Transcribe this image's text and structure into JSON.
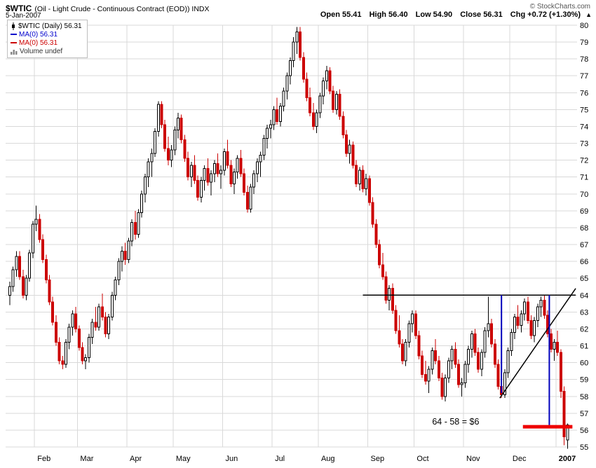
{
  "header": {
    "symbol": "$WTIC",
    "description": "(Oil - Light Crude - Continuous Contract (EOD)) INDX",
    "copyright": "© StockCharts.com",
    "date": "5-Jan-2007",
    "quote": {
      "open_label": "Open",
      "open": "55.41",
      "high_label": "High",
      "high": "56.40",
      "low_label": "Low",
      "low": "54.90",
      "close_label": "Close",
      "close": "56.31",
      "chg_label": "Chg",
      "chg": "+0.72 (+1.30%)",
      "arrow": "▲"
    }
  },
  "legend": {
    "series": "$WTIC (Daily) 56.31",
    "ma1": "MA(0) 56.31",
    "ma2": "MA(0) 56.31",
    "volume": "Volume undef"
  },
  "chart_data": {
    "type": "candlestick",
    "title": "$WTIC (Oil - Light Crude - Continuous Contract (EOD)) INDX",
    "timeframe": "Daily",
    "grid": true,
    "y_axis_side": "right",
    "legend_position": "top-left",
    "ylim": [
      55,
      80
    ],
    "y_ticks": [
      55,
      56,
      57,
      58,
      59,
      60,
      61,
      62,
      63,
      64,
      65,
      66,
      67,
      68,
      69,
      70,
      71,
      72,
      73,
      74,
      75,
      76,
      77,
      78,
      79,
      80
    ],
    "x_labels": [
      "Feb",
      "Mar",
      "Apr",
      "May",
      "Jun",
      "Jul",
      "Aug",
      "Sep",
      "Oct",
      "Nov",
      "Dec",
      "2007"
    ],
    "month_start_indices": [
      8,
      21,
      36,
      50,
      65,
      80,
      94,
      109,
      123,
      138,
      152,
      166
    ],
    "colors": {
      "up": "#000000",
      "down": "#cc0000",
      "grid": "#d9d9d9",
      "annotation_black": "#000000",
      "annotation_blue": "#0000bb",
      "annotation_red": "#ee0000"
    },
    "candle_format": [
      "open",
      "high",
      "low",
      "close"
    ],
    "candles": [
      [
        64.0,
        64.8,
        63.4,
        64.5
      ],
      [
        64.5,
        65.7,
        64.2,
        65.5
      ],
      [
        65.5,
        66.6,
        65.1,
        66.3
      ],
      [
        66.3,
        66.6,
        64.9,
        65.1
      ],
      [
        65.1,
        65.5,
        63.8,
        64.0
      ],
      [
        64.0,
        65.2,
        63.7,
        65.0
      ],
      [
        65.0,
        66.7,
        64.8,
        66.5
      ],
      [
        66.5,
        68.4,
        66.2,
        68.2
      ],
      [
        68.2,
        69.3,
        67.8,
        68.5
      ],
      [
        68.5,
        68.8,
        67.1,
        67.3
      ],
      [
        67.3,
        67.6,
        65.9,
        66.1
      ],
      [
        66.1,
        66.4,
        64.7,
        64.9
      ],
      [
        64.9,
        65.2,
        63.4,
        63.6
      ],
      [
        63.6,
        63.9,
        62.2,
        62.4
      ],
      [
        62.4,
        62.8,
        61.0,
        61.2
      ],
      [
        61.2,
        61.5,
        59.9,
        60.1
      ],
      [
        60.1,
        60.4,
        59.6,
        59.9
      ],
      [
        59.9,
        61.4,
        59.7,
        61.2
      ],
      [
        61.2,
        62.3,
        60.8,
        62.1
      ],
      [
        62.1,
        63.1,
        61.6,
        62.9
      ],
      [
        62.9,
        63.3,
        61.8,
        62.0
      ],
      [
        62.0,
        62.2,
        60.7,
        60.9
      ],
      [
        60.9,
        61.2,
        59.9,
        60.1
      ],
      [
        60.1,
        60.5,
        59.6,
        60.3
      ],
      [
        60.3,
        61.7,
        60.0,
        61.5
      ],
      [
        61.5,
        62.6,
        61.1,
        62.4
      ],
      [
        62.4,
        63.3,
        61.9,
        62.1
      ],
      [
        62.1,
        63.5,
        61.9,
        63.3
      ],
      [
        63.3,
        64.1,
        62.5,
        62.7
      ],
      [
        62.7,
        63.0,
        61.5,
        61.7
      ],
      [
        61.7,
        62.9,
        61.4,
        62.7
      ],
      [
        62.7,
        64.2,
        62.5,
        64.0
      ],
      [
        64.0,
        65.1,
        63.7,
        64.9
      ],
      [
        64.9,
        66.2,
        64.6,
        66.0
      ],
      [
        66.0,
        66.9,
        65.4,
        66.6
      ],
      [
        66.6,
        67.1,
        65.8,
        66.1
      ],
      [
        66.1,
        67.4,
        65.9,
        67.2
      ],
      [
        67.2,
        68.5,
        66.9,
        68.3
      ],
      [
        68.3,
        69.0,
        67.3,
        67.6
      ],
      [
        67.6,
        69.1,
        67.4,
        68.9
      ],
      [
        68.9,
        70.2,
        68.6,
        70.0
      ],
      [
        70.0,
        71.2,
        69.5,
        71.0
      ],
      [
        71.0,
        72.1,
        70.4,
        71.9
      ],
      [
        71.9,
        72.7,
        71.0,
        72.4
      ],
      [
        72.4,
        73.9,
        72.2,
        73.7
      ],
      [
        73.7,
        75.5,
        73.4,
        75.3
      ],
      [
        75.3,
        75.5,
        73.9,
        74.1
      ],
      [
        74.1,
        74.4,
        72.5,
        72.7
      ],
      [
        72.7,
        73.4,
        71.7,
        72.0
      ],
      [
        72.0,
        72.9,
        71.6,
        72.6
      ],
      [
        72.6,
        74.0,
        72.3,
        73.8
      ],
      [
        73.8,
        74.8,
        73.3,
        74.5
      ],
      [
        74.5,
        74.7,
        73.0,
        73.2
      ],
      [
        73.2,
        73.5,
        71.9,
        72.1
      ],
      [
        72.1,
        72.5,
        70.8,
        71.0
      ],
      [
        71.0,
        71.9,
        70.4,
        71.7
      ],
      [
        71.7,
        72.3,
        70.6,
        70.8
      ],
      [
        70.8,
        71.1,
        69.6,
        69.8
      ],
      [
        69.8,
        71.0,
        69.5,
        70.8
      ],
      [
        70.8,
        71.7,
        70.2,
        71.5
      ],
      [
        71.5,
        72.1,
        70.5,
        70.7
      ],
      [
        70.7,
        71.4,
        69.9,
        71.2
      ],
      [
        71.2,
        72.0,
        70.7,
        71.8
      ],
      [
        71.8,
        72.4,
        71.0,
        71.2
      ],
      [
        71.2,
        71.7,
        70.3,
        71.4
      ],
      [
        71.4,
        72.7,
        71.1,
        72.5
      ],
      [
        72.5,
        73.2,
        71.5,
        71.7
      ],
      [
        71.7,
        72.0,
        70.4,
        70.6
      ],
      [
        70.6,
        71.5,
        70.0,
        71.3
      ],
      [
        71.3,
        72.3,
        70.9,
        72.1
      ],
      [
        72.1,
        72.6,
        71.0,
        71.2
      ],
      [
        71.2,
        71.5,
        69.9,
        70.1
      ],
      [
        70.1,
        70.5,
        68.9,
        69.1
      ],
      [
        69.1,
        70.6,
        68.9,
        70.4
      ],
      [
        70.4,
        71.4,
        70.0,
        71.2
      ],
      [
        71.2,
        72.1,
        70.7,
        71.9
      ],
      [
        71.9,
        72.5,
        71.0,
        72.3
      ],
      [
        72.3,
        73.5,
        72.0,
        73.3
      ],
      [
        73.3,
        74.1,
        72.7,
        73.9
      ],
      [
        73.9,
        74.4,
        73.3,
        74.1
      ],
      [
        74.1,
        75.2,
        73.8,
        75.0
      ],
      [
        75.0,
        75.7,
        74.1,
        74.3
      ],
      [
        74.3,
        75.4,
        74.0,
        75.2
      ],
      [
        75.2,
        76.3,
        74.9,
        76.1
      ],
      [
        76.1,
        77.2,
        75.6,
        77.0
      ],
      [
        77.0,
        78.1,
        76.5,
        77.9
      ],
      [
        77.9,
        79.3,
        77.5,
        79.0
      ],
      [
        79.0,
        79.9,
        78.3,
        79.6
      ],
      [
        79.6,
        79.9,
        77.9,
        78.1
      ],
      [
        78.1,
        78.4,
        76.6,
        76.8
      ],
      [
        76.8,
        77.2,
        75.5,
        75.7
      ],
      [
        75.7,
        76.3,
        74.6,
        74.8
      ],
      [
        74.8,
        75.4,
        73.8,
        74.0
      ],
      [
        74.0,
        75.0,
        73.6,
        74.8
      ],
      [
        74.8,
        76.0,
        74.5,
        75.8
      ],
      [
        75.8,
        76.9,
        75.3,
        76.7
      ],
      [
        76.7,
        77.6,
        76.2,
        77.3
      ],
      [
        77.3,
        77.5,
        75.9,
        76.1
      ],
      [
        76.1,
        76.4,
        74.8,
        75.0
      ],
      [
        75.0,
        76.1,
        74.7,
        75.9
      ],
      [
        75.9,
        76.2,
        74.4,
        74.6
      ],
      [
        74.6,
        74.9,
        73.3,
        73.5
      ],
      [
        73.5,
        73.8,
        72.2,
        72.4
      ],
      [
        72.4,
        73.2,
        71.8,
        72.9
      ],
      [
        72.9,
        73.1,
        71.5,
        71.7
      ],
      [
        71.7,
        72.0,
        70.4,
        70.6
      ],
      [
        70.6,
        71.6,
        70.2,
        71.4
      ],
      [
        71.4,
        71.7,
        70.1,
        70.3
      ],
      [
        70.3,
        71.2,
        69.9,
        70.9
      ],
      [
        70.9,
        71.1,
        69.3,
        69.5
      ],
      [
        69.5,
        69.8,
        68.0,
        68.2
      ],
      [
        68.2,
        68.5,
        66.8,
        67.0
      ],
      [
        67.0,
        67.3,
        65.6,
        65.8
      ],
      [
        65.8,
        66.5,
        64.9,
        65.1
      ],
      [
        65.1,
        65.4,
        63.5,
        63.7
      ],
      [
        63.7,
        64.6,
        63.1,
        64.4
      ],
      [
        64.4,
        64.7,
        62.9,
        63.1
      ],
      [
        63.1,
        63.4,
        61.7,
        61.9
      ],
      [
        61.9,
        62.8,
        60.9,
        61.1
      ],
      [
        61.1,
        61.4,
        59.9,
        60.1
      ],
      [
        60.1,
        61.4,
        59.8,
        61.2
      ],
      [
        61.2,
        62.5,
        60.9,
        62.3
      ],
      [
        62.3,
        63.1,
        61.8,
        62.9
      ],
      [
        62.9,
        63.1,
        61.4,
        61.6
      ],
      [
        61.6,
        61.9,
        60.2,
        60.4
      ],
      [
        60.4,
        60.7,
        59.1,
        59.3
      ],
      [
        59.3,
        60.1,
        58.7,
        58.9
      ],
      [
        58.9,
        59.8,
        58.2,
        59.6
      ],
      [
        59.6,
        60.9,
        59.3,
        60.7
      ],
      [
        60.7,
        61.4,
        59.9,
        60.1
      ],
      [
        60.1,
        60.4,
        58.9,
        59.1
      ],
      [
        59.1,
        59.4,
        57.8,
        58.0
      ],
      [
        58.0,
        59.3,
        57.7,
        59.1
      ],
      [
        59.1,
        60.3,
        58.8,
        60.1
      ],
      [
        60.1,
        61.0,
        59.6,
        60.8
      ],
      [
        60.8,
        61.2,
        59.7,
        59.9
      ],
      [
        59.9,
        60.2,
        58.5,
        58.7
      ],
      [
        58.7,
        59.1,
        58.0,
        58.8
      ],
      [
        58.8,
        60.1,
        58.5,
        59.9
      ],
      [
        59.9,
        61.0,
        59.4,
        60.8
      ],
      [
        60.8,
        61.9,
        60.3,
        61.7
      ],
      [
        61.7,
        62.0,
        60.4,
        60.6
      ],
      [
        60.6,
        60.9,
        59.4,
        59.6
      ],
      [
        59.6,
        60.8,
        59.2,
        60.6
      ],
      [
        60.6,
        62.1,
        60.3,
        61.9
      ],
      [
        61.9,
        63.9,
        61.5,
        62.3
      ],
      [
        62.3,
        62.6,
        60.9,
        61.1
      ],
      [
        61.1,
        61.4,
        59.7,
        59.9
      ],
      [
        59.9,
        60.2,
        58.4,
        58.6
      ],
      [
        58.6,
        58.9,
        57.9,
        58.1
      ],
      [
        58.1,
        59.6,
        57.9,
        59.4
      ],
      [
        59.4,
        60.9,
        59.1,
        60.7
      ],
      [
        60.7,
        62.0,
        60.4,
        61.8
      ],
      [
        61.8,
        62.9,
        61.4,
        62.7
      ],
      [
        62.7,
        63.4,
        62.0,
        62.2
      ],
      [
        62.2,
        63.1,
        61.8,
        62.9
      ],
      [
        62.9,
        63.8,
        62.5,
        63.6
      ],
      [
        63.6,
        63.9,
        62.3,
        62.5
      ],
      [
        62.5,
        62.8,
        61.4,
        61.6
      ],
      [
        61.6,
        62.7,
        61.2,
        62.5
      ],
      [
        62.5,
        63.5,
        62.1,
        63.3
      ],
      [
        63.3,
        63.9,
        62.7,
        63.7
      ],
      [
        63.7,
        64.0,
        62.6,
        62.8
      ],
      [
        62.8,
        63.1,
        61.5,
        61.7
      ],
      [
        61.7,
        62.0,
        60.6,
        60.8
      ],
      [
        60.8,
        61.4,
        60.1,
        61.2
      ],
      [
        61.2,
        61.9,
        60.4,
        60.6
      ],
      [
        60.6,
        60.8,
        57.9,
        58.3
      ],
      [
        58.3,
        58.6,
        55.1,
        55.6
      ],
      [
        55.41,
        56.4,
        54.9,
        56.31
      ]
    ],
    "annotations": {
      "resistance_line": {
        "price": 64,
        "from_index": 107,
        "to_index": 171.5
      },
      "trendline": {
        "from": {
          "index": 148.5,
          "price": 57.9
        },
        "to": {
          "index": 171.5,
          "price": 64.4
        }
      },
      "measure_line_1": {
        "index": 149,
        "from_price": 64,
        "to_price": 58.2
      },
      "measure_line_2": {
        "index": 163.5,
        "from_price": 64,
        "to_price": 56.3
      },
      "target_line": {
        "price": 56.2,
        "from_index": 155.5,
        "to_index": 170.5
      },
      "note": {
        "text": "64 - 58 = $6",
        "index": 128,
        "price": 56.5
      }
    }
  }
}
